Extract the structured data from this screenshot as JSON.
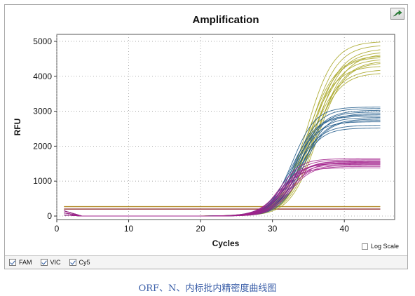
{
  "chart_data": {
    "type": "line",
    "title": "Amplification",
    "xlabel": "Cycles",
    "ylabel": "RFU",
    "xlim": [
      0,
      47
    ],
    "ylim": [
      -100,
      5200
    ],
    "xticks": [
      "0",
      "10",
      "20",
      "30",
      "40"
    ],
    "yticks": [
      "0",
      "1000",
      "2000",
      "3000",
      "4000",
      "5000"
    ],
    "grid": true,
    "cycles": [
      1,
      45
    ],
    "series": [
      {
        "name": "FAM",
        "color": "#a8a626",
        "midpoint": 35.5,
        "slope": 1.2,
        "plateaus": [
          5000,
          4900,
          4800,
          4700,
          4650,
          4600,
          4550,
          4500,
          4450,
          4400,
          4300,
          4200,
          4100
        ]
      },
      {
        "name": "VIC",
        "color": "#1f5a8a",
        "midpoint": 33.5,
        "slope": 1.05,
        "plateaus": [
          3120,
          3080,
          3030,
          2980,
          2940,
          2900,
          2860,
          2820,
          2780,
          2740,
          2700,
          2600,
          2520
        ]
      },
      {
        "name": "Cy5",
        "color": "#a2208c",
        "midpoint": 31.8,
        "slope": 0.95,
        "plateaus": [
          1640,
          1610,
          1580,
          1560,
          1540,
          1520,
          1500,
          1480,
          1460,
          1420,
          1380
        ]
      }
    ],
    "thresholds": [
      {
        "value": 270,
        "color": "#b38b2a"
      },
      {
        "value": 200,
        "color": "#8e2f2f"
      }
    ]
  },
  "legend": {
    "items": [
      {
        "label": "FAM",
        "checked": true
      },
      {
        "label": "VIC",
        "checked": true
      },
      {
        "label": "Cy5",
        "checked": true
      }
    ]
  },
  "log_scale": {
    "label": "Log Scale",
    "checked": false
  },
  "caption": "ORF、N、内标批内精密度曲线图"
}
